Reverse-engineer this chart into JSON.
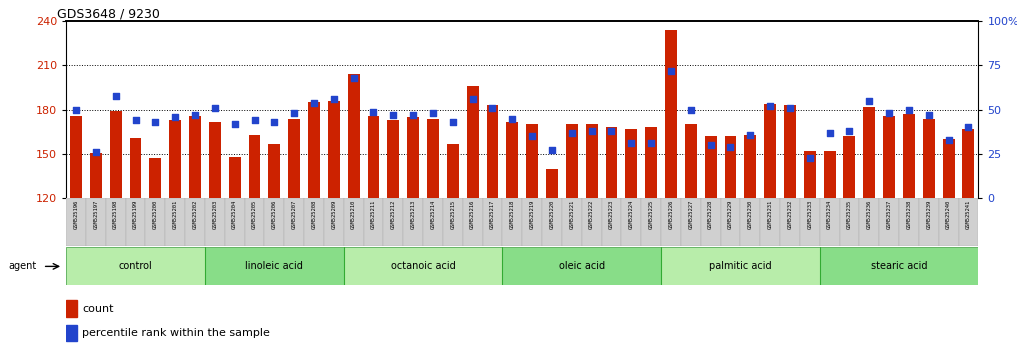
{
  "title": "GDS3648 / 9230",
  "samples": [
    "GSM525196",
    "GSM525197",
    "GSM525198",
    "GSM525199",
    "GSM525200",
    "GSM525201",
    "GSM525202",
    "GSM525203",
    "GSM525204",
    "GSM525205",
    "GSM525206",
    "GSM525207",
    "GSM525208",
    "GSM525209",
    "GSM525210",
    "GSM525211",
    "GSM525212",
    "GSM525213",
    "GSM525214",
    "GSM525215",
    "GSM525216",
    "GSM525217",
    "GSM525218",
    "GSM525219",
    "GSM525220",
    "GSM525221",
    "GSM525222",
    "GSM525223",
    "GSM525224",
    "GSM525225",
    "GSM525226",
    "GSM525227",
    "GSM525228",
    "GSM525229",
    "GSM525230",
    "GSM525231",
    "GSM525232",
    "GSM525233",
    "GSM525234",
    "GSM525235",
    "GSM525236",
    "GSM525237",
    "GSM525238",
    "GSM525239",
    "GSM525240",
    "GSM525241"
  ],
  "counts": [
    176,
    151,
    179,
    161,
    147,
    173,
    176,
    172,
    148,
    163,
    157,
    174,
    185,
    186,
    204,
    176,
    173,
    175,
    174,
    157,
    196,
    183,
    172,
    170,
    140,
    170,
    170,
    168,
    167,
    168,
    234,
    170,
    162,
    162,
    163,
    184,
    183,
    152,
    152,
    162,
    182,
    176,
    177,
    174,
    160,
    167
  ],
  "percentiles": [
    50,
    26,
    58,
    44,
    43,
    46,
    47,
    51,
    42,
    44,
    43,
    48,
    54,
    56,
    68,
    49,
    47,
    47,
    48,
    43,
    56,
    51,
    45,
    35,
    27,
    37,
    38,
    38,
    31,
    31,
    72,
    50,
    30,
    29,
    36,
    52,
    51,
    23,
    37,
    38,
    55,
    48,
    50,
    47,
    33,
    40
  ],
  "groups": [
    {
      "label": "control",
      "start": 0,
      "end": 7
    },
    {
      "label": "linoleic acid",
      "start": 7,
      "end": 14
    },
    {
      "label": "octanoic acid",
      "start": 14,
      "end": 22
    },
    {
      "label": "oleic acid",
      "start": 22,
      "end": 30
    },
    {
      "label": "palmitic acid",
      "start": 30,
      "end": 38
    },
    {
      "label": "stearic acid",
      "start": 38,
      "end": 46
    }
  ],
  "ylim_left": [
    120,
    240
  ],
  "ylim_right": [
    0,
    100
  ],
  "yticks_left": [
    120,
    150,
    180,
    210,
    240
  ],
  "yticks_right": [
    0,
    25,
    50,
    75,
    100
  ],
  "ytick_labels_right": [
    "0",
    "25",
    "50",
    "75",
    "100%"
  ],
  "bar_color": "#cc2200",
  "dot_color": "#2244cc",
  "grid_dotted_at": [
    150,
    180,
    210
  ],
  "group_colors": [
    "#b8edaa",
    "#88dd88"
  ],
  "tick_bg_color": "#d0d0d0",
  "agent_label": "agent",
  "legend_count": "count",
  "legend_pct": "percentile rank within the sample",
  "title_fontsize": 9
}
